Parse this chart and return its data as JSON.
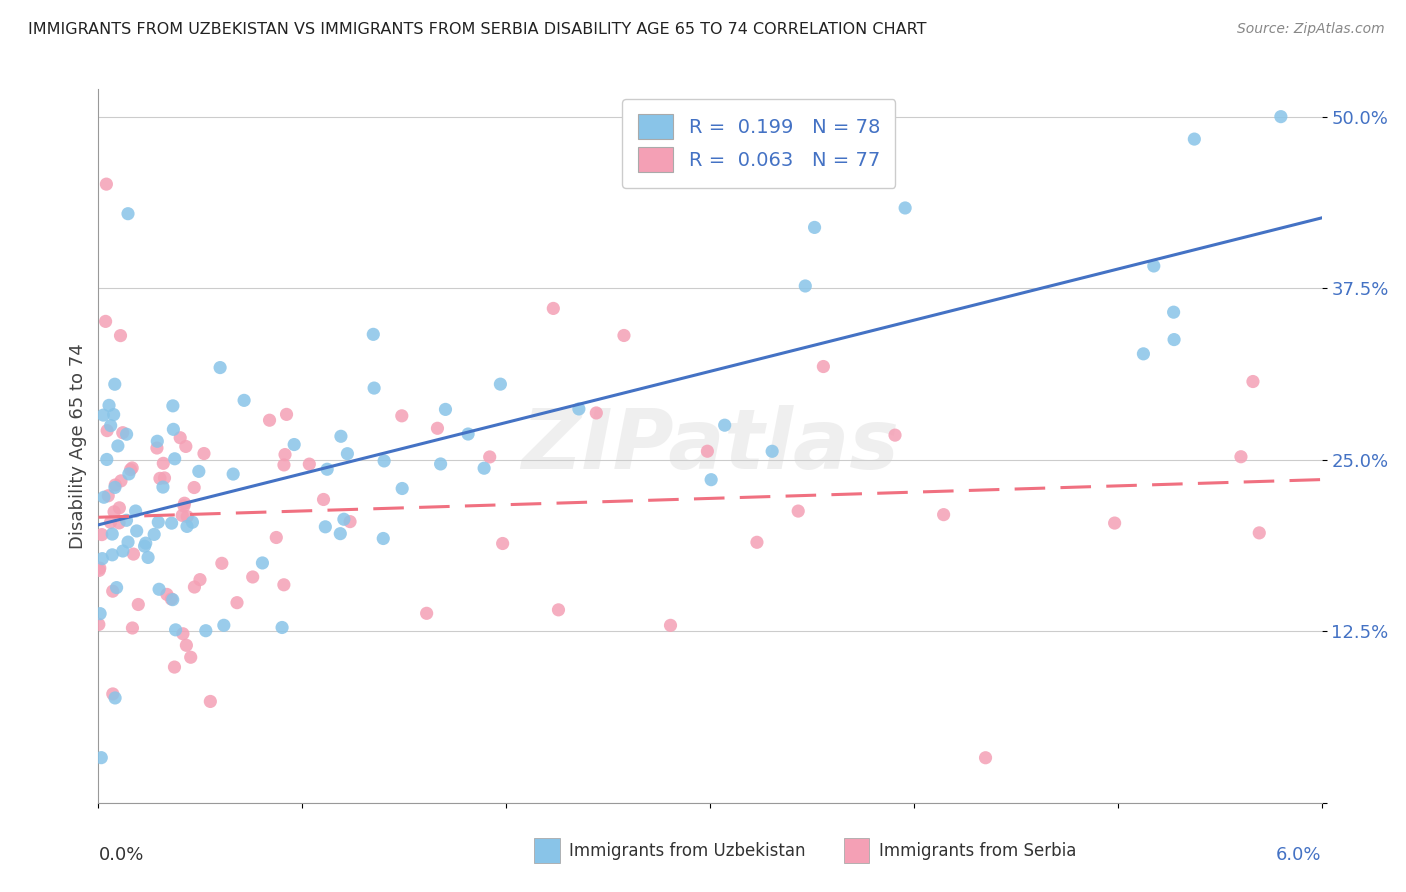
{
  "title": "IMMIGRANTS FROM UZBEKISTAN VS IMMIGRANTS FROM SERBIA DISABILITY AGE 65 TO 74 CORRELATION CHART",
  "source": "Source: ZipAtlas.com",
  "ylabel": "Disability Age 65 to 74",
  "xlim": [
    0.0,
    0.06
  ],
  "ylim": [
    0.0,
    0.52
  ],
  "yticks": [
    0.0,
    0.125,
    0.25,
    0.375,
    0.5
  ],
  "ytick_labels": [
    "",
    "12.5%",
    "25.0%",
    "37.5%",
    "50.0%"
  ],
  "color_uzbekistan": "#89C4E8",
  "color_serbia": "#F4A0B5",
  "line_color_uzbekistan": "#4472C4",
  "line_color_serbia": "#F07080",
  "legend_r_uzbekistan": "R =  0.199   N = 78",
  "legend_r_serbia": "R =  0.063   N = 77",
  "watermark": "ZIPatlas",
  "seed": 42,
  "n_uzbekistan": 78,
  "n_serbia": 77
}
